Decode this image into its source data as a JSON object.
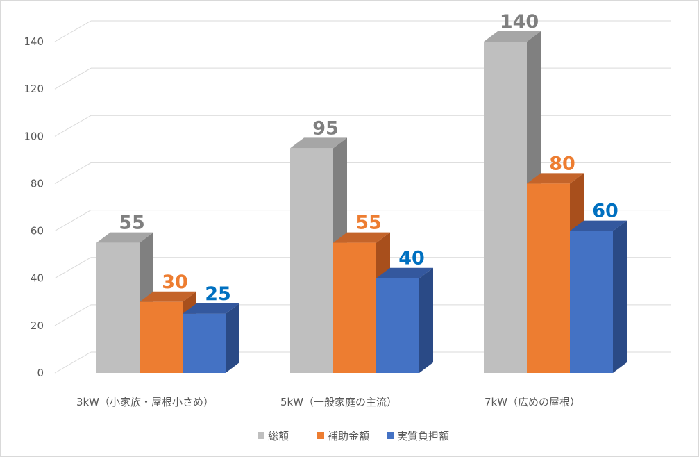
{
  "chart_data": {
    "type": "bar",
    "categories": [
      "3kW（小家族・屋根小さめ）",
      "5kW（一般家庭の主流）",
      "7kW（広めの屋根）"
    ],
    "series": [
      {
        "name": "総額",
        "values": [
          55,
          95,
          140
        ],
        "color": "#bfbfbf",
        "side": "#808080",
        "top": "#a6a6a6",
        "label_color": "#7f7f7f"
      },
      {
        "name": "補助金額",
        "values": [
          30,
          55,
          80
        ],
        "color": "#ed7d31",
        "side": "#a84f1c",
        "top": "#c4642a",
        "label_color": "#ed7d31"
      },
      {
        "name": "実質負担額",
        "values": [
          25,
          40,
          60
        ],
        "color": "#4472c4",
        "side": "#2a4a86",
        "top": "#34589e",
        "label_color": "#0070c0"
      }
    ],
    "yticks": [
      0,
      20,
      40,
      60,
      80,
      100,
      120,
      140
    ],
    "ylim": [
      0,
      140
    ],
    "grid": true,
    "legend": "bottom"
  }
}
